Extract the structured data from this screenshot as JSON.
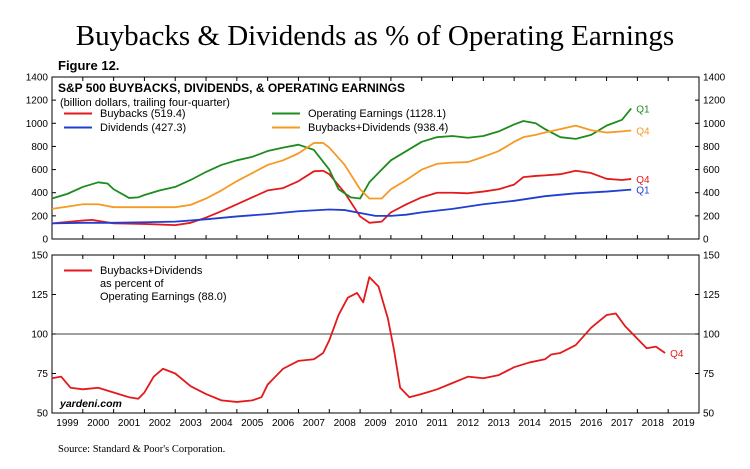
{
  "title": "Buybacks & Dividends as % of Operating Earnings",
  "figure_label": "Figure 12.",
  "source": "Source: Standard & Poor's Corporation.",
  "watermark": "yardeni.com",
  "colors": {
    "buybacks": "#e31a1c",
    "dividends": "#1f3fd1",
    "operating": "#1e8c1e",
    "combined": "#f59a23",
    "ratio": "#e31a1c"
  },
  "chart_data": [
    {
      "type": "line",
      "title": "S&P 500 BUYBACKS, DIVIDENDS, & OPERATING EARNINGS",
      "subtitle": "(billion dollars, trailing four-quarter)",
      "ylim": [
        0,
        1400
      ],
      "yticks": [
        "0",
        "200",
        "400",
        "600",
        "800",
        "1000",
        "1200",
        "1400"
      ],
      "series": [
        {
          "name": "Buybacks (519.4)",
          "key": "buybacks",
          "end_label": "Q4",
          "points": [
            [
              1999.0,
              135
            ],
            [
              2000.0,
              160
            ],
            [
              2000.3,
              165
            ],
            [
              2001.0,
              135
            ],
            [
              2002.0,
              130
            ],
            [
              2003.0,
              120
            ],
            [
              2003.5,
              140
            ],
            [
              2004.0,
              185
            ],
            [
              2004.5,
              240
            ],
            [
              2005.0,
              300
            ],
            [
              2005.5,
              360
            ],
            [
              2006.0,
              420
            ],
            [
              2006.5,
              440
            ],
            [
              2007.0,
              500
            ],
            [
              2007.5,
              585
            ],
            [
              2007.8,
              590
            ],
            [
              2008.0,
              560
            ],
            [
              2008.5,
              400
            ],
            [
              2009.0,
              195
            ],
            [
              2009.3,
              140
            ],
            [
              2009.7,
              150
            ],
            [
              2010.0,
              230
            ],
            [
              2010.5,
              300
            ],
            [
              2011.0,
              360
            ],
            [
              2011.5,
              400
            ],
            [
              2012.0,
              400
            ],
            [
              2012.5,
              395
            ],
            [
              2013.0,
              410
            ],
            [
              2013.5,
              430
            ],
            [
              2014.0,
              470
            ],
            [
              2014.3,
              535
            ],
            [
              2014.7,
              545
            ],
            [
              2015.0,
              550
            ],
            [
              2015.5,
              560
            ],
            [
              2016.0,
              590
            ],
            [
              2016.5,
              570
            ],
            [
              2017.0,
              520
            ],
            [
              2017.5,
              510
            ],
            [
              2017.8,
              519
            ]
          ]
        },
        {
          "name": "Dividends (427.3)",
          "key": "dividends",
          "end_label": "Q1",
          "points": [
            [
              1999.0,
              135
            ],
            [
              2000.0,
              140
            ],
            [
              2001.0,
              140
            ],
            [
              2002.0,
              145
            ],
            [
              2003.0,
              150
            ],
            [
              2004.0,
              170
            ],
            [
              2005.0,
              195
            ],
            [
              2006.0,
              215
            ],
            [
              2007.0,
              240
            ],
            [
              2008.0,
              255
            ],
            [
              2008.5,
              250
            ],
            [
              2009.0,
              225
            ],
            [
              2009.5,
              200
            ],
            [
              2010.0,
              200
            ],
            [
              2010.5,
              210
            ],
            [
              2011.0,
              230
            ],
            [
              2012.0,
              260
            ],
            [
              2013.0,
              300
            ],
            [
              2014.0,
              330
            ],
            [
              2015.0,
              370
            ],
            [
              2016.0,
              395
            ],
            [
              2017.0,
              410
            ],
            [
              2017.8,
              427
            ]
          ]
        },
        {
          "name": "Operating Earnings (1128.1)",
          "key": "operating",
          "end_label": "Q1",
          "points": [
            [
              1999.0,
              350
            ],
            [
              1999.5,
              390
            ],
            [
              2000.0,
              450
            ],
            [
              2000.5,
              490
            ],
            [
              2000.8,
              480
            ],
            [
              2001.0,
              430
            ],
            [
              2001.5,
              355
            ],
            [
              2001.8,
              360
            ],
            [
              2002.0,
              380
            ],
            [
              2002.5,
              420
            ],
            [
              2003.0,
              450
            ],
            [
              2003.5,
              510
            ],
            [
              2004.0,
              580
            ],
            [
              2004.5,
              640
            ],
            [
              2005.0,
              680
            ],
            [
              2005.5,
              710
            ],
            [
              2006.0,
              760
            ],
            [
              2006.5,
              790
            ],
            [
              2007.0,
              815
            ],
            [
              2007.5,
              770
            ],
            [
              2008.0,
              600
            ],
            [
              2008.3,
              430
            ],
            [
              2008.7,
              360
            ],
            [
              2009.0,
              350
            ],
            [
              2009.3,
              490
            ],
            [
              2009.7,
              600
            ],
            [
              2010.0,
              680
            ],
            [
              2010.5,
              760
            ],
            [
              2011.0,
              840
            ],
            [
              2011.5,
              880
            ],
            [
              2012.0,
              890
            ],
            [
              2012.5,
              875
            ],
            [
              2013.0,
              890
            ],
            [
              2013.5,
              930
            ],
            [
              2014.0,
              990
            ],
            [
              2014.3,
              1020
            ],
            [
              2014.7,
              1000
            ],
            [
              2015.0,
              950
            ],
            [
              2015.5,
              880
            ],
            [
              2016.0,
              865
            ],
            [
              2016.5,
              900
            ],
            [
              2017.0,
              980
            ],
            [
              2017.5,
              1030
            ],
            [
              2017.8,
              1128
            ]
          ]
        },
        {
          "name": "Buybacks+Dividends (938.4)",
          "key": "combined",
          "end_label": "Q4",
          "points": [
            [
              1999.0,
              260
            ],
            [
              1999.5,
              280
            ],
            [
              2000.0,
              300
            ],
            [
              2000.5,
              300
            ],
            [
              2001.0,
              275
            ],
            [
              2002.0,
              275
            ],
            [
              2003.0,
              275
            ],
            [
              2003.5,
              295
            ],
            [
              2004.0,
              350
            ],
            [
              2004.5,
              420
            ],
            [
              2005.0,
              500
            ],
            [
              2005.5,
              570
            ],
            [
              2006.0,
              640
            ],
            [
              2006.5,
              680
            ],
            [
              2007.0,
              740
            ],
            [
              2007.5,
              830
            ],
            [
              2007.8,
              830
            ],
            [
              2008.0,
              790
            ],
            [
              2008.5,
              640
            ],
            [
              2009.0,
              430
            ],
            [
              2009.3,
              350
            ],
            [
              2009.7,
              350
            ],
            [
              2010.0,
              430
            ],
            [
              2010.5,
              510
            ],
            [
              2011.0,
              600
            ],
            [
              2011.5,
              650
            ],
            [
              2012.0,
              660
            ],
            [
              2012.5,
              665
            ],
            [
              2013.0,
              710
            ],
            [
              2013.5,
              760
            ],
            [
              2014.0,
              840
            ],
            [
              2014.3,
              880
            ],
            [
              2014.7,
              900
            ],
            [
              2015.0,
              920
            ],
            [
              2015.5,
              950
            ],
            [
              2016.0,
              980
            ],
            [
              2016.5,
              940
            ],
            [
              2017.0,
              920
            ],
            [
              2017.5,
              930
            ],
            [
              2017.8,
              938
            ]
          ]
        }
      ]
    },
    {
      "type": "line",
      "ylim": [
        50,
        150
      ],
      "yticks": [
        "50",
        "75",
        "100",
        "125",
        "150"
      ],
      "reference_line": 100,
      "xlabels": [
        "1999",
        "2000",
        "2001",
        "2002",
        "2003",
        "2004",
        "2005",
        "2006",
        "2007",
        "2008",
        "2009",
        "2010",
        "2011",
        "2012",
        "2013",
        "2014",
        "2015",
        "2016",
        "2017",
        "2018",
        "2019"
      ],
      "xlim": [
        1999.0,
        2020.0
      ],
      "series": [
        {
          "name": "Buybacks+Dividends",
          "line2": "as percent of",
          "line3": "Operating Earnings (88.0)",
          "key": "ratio",
          "end_label": "Q4",
          "points": [
            [
              1999.0,
              72
            ],
            [
              1999.3,
              73
            ],
            [
              1999.6,
              66
            ],
            [
              2000.0,
              65
            ],
            [
              2000.5,
              66
            ],
            [
              2001.0,
              63
            ],
            [
              2001.5,
              60
            ],
            [
              2001.8,
              59
            ],
            [
              2002.0,
              63
            ],
            [
              2002.3,
              73
            ],
            [
              2002.6,
              78
            ],
            [
              2003.0,
              75
            ],
            [
              2003.5,
              67
            ],
            [
              2004.0,
              62
            ],
            [
              2004.5,
              58
            ],
            [
              2005.0,
              57
            ],
            [
              2005.5,
              58
            ],
            [
              2005.8,
              60
            ],
            [
              2006.0,
              68
            ],
            [
              2006.5,
              78
            ],
            [
              2007.0,
              83
            ],
            [
              2007.5,
              84
            ],
            [
              2007.8,
              88
            ],
            [
              2008.0,
              96
            ],
            [
              2008.3,
              112
            ],
            [
              2008.6,
              123
            ],
            [
              2008.9,
              126
            ],
            [
              2009.1,
              120
            ],
            [
              2009.3,
              136
            ],
            [
              2009.6,
              130
            ],
            [
              2009.9,
              110
            ],
            [
              2010.1,
              90
            ],
            [
              2010.3,
              66
            ],
            [
              2010.6,
              60
            ],
            [
              2011.0,
              62
            ],
            [
              2011.5,
              65
            ],
            [
              2012.0,
              69
            ],
            [
              2012.5,
              73
            ],
            [
              2013.0,
              72
            ],
            [
              2013.5,
              74
            ],
            [
              2014.0,
              79
            ],
            [
              2014.5,
              82
            ],
            [
              2015.0,
              84
            ],
            [
              2015.2,
              87
            ],
            [
              2015.5,
              88
            ],
            [
              2016.0,
              93
            ],
            [
              2016.5,
              104
            ],
            [
              2017.0,
              112
            ],
            [
              2017.3,
              113
            ],
            [
              2017.6,
              105
            ],
            [
              2018.0,
              97
            ],
            [
              2018.3,
              91
            ],
            [
              2018.6,
              92
            ],
            [
              2018.9,
              88
            ]
          ]
        }
      ]
    }
  ]
}
